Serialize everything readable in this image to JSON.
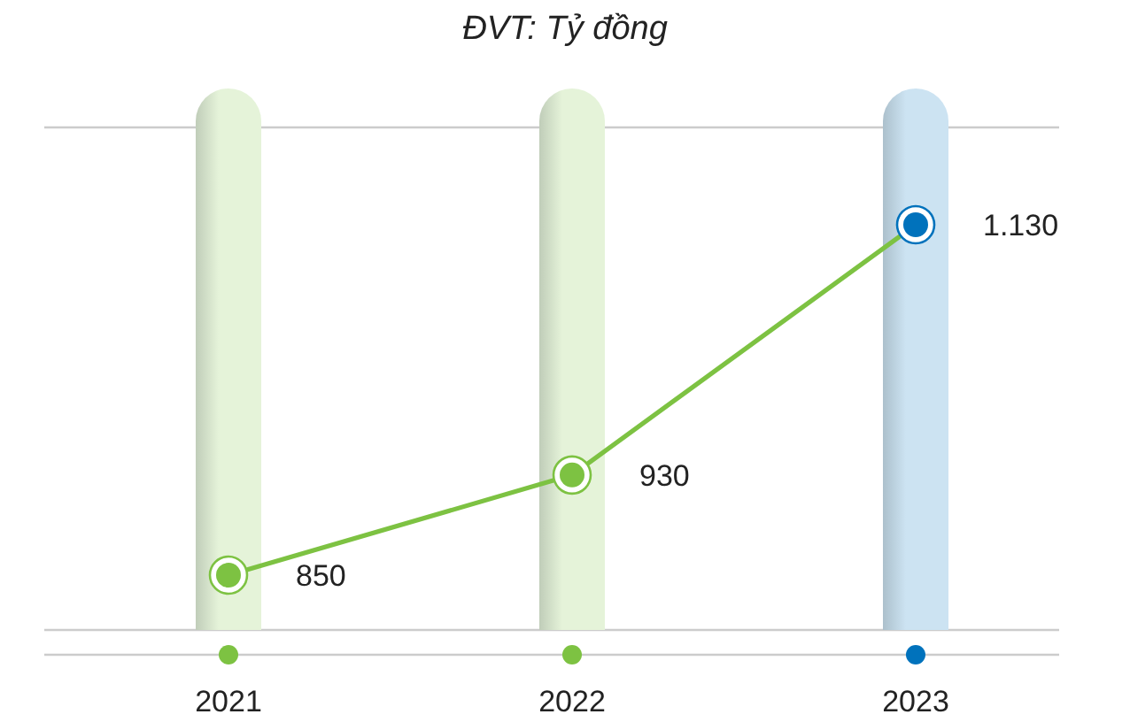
{
  "chart_data": {
    "type": "line",
    "title": "ĐVT: Tỷ đồng",
    "categories": [
      "2021",
      "2022",
      "2023"
    ],
    "series": [
      {
        "color": "#7dc242",
        "colors": [
          "#7dc242",
          "#7dc242",
          "#0072bc"
        ],
        "values": [
          850,
          930,
          1130
        ],
        "value_labels": [
          "850",
          "930",
          "1.130"
        ]
      }
    ],
    "marker": "circle",
    "line_style": "solid"
  }
}
